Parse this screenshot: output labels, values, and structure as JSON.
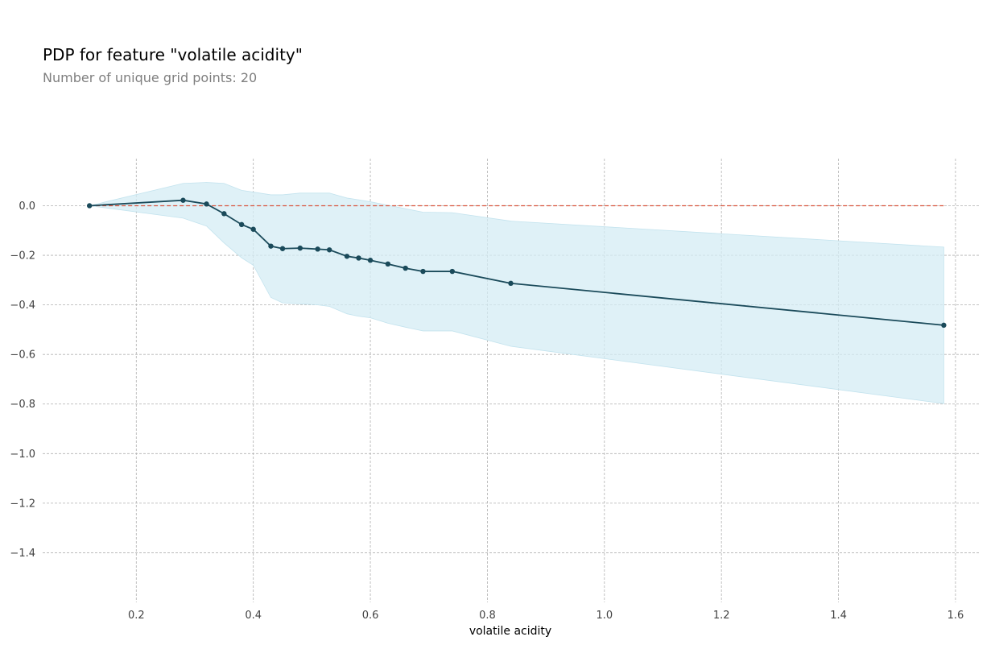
{
  "chart_data": {
    "type": "line",
    "title": "PDP for feature \"volatile acidity\"",
    "subtitle": "Number of unique grid points: 20",
    "xlabel": "volatile acidity",
    "ylabel": "",
    "xlim": [
      0.04,
      1.64
    ],
    "ylim": [
      -1.6,
      0.19
    ],
    "xticks": [
      0.2,
      0.4,
      0.6,
      0.8,
      1.0,
      1.2,
      1.4,
      1.6
    ],
    "xtick_labels": [
      "0.2",
      "0.4",
      "0.6",
      "0.8",
      "1.0",
      "1.2",
      "1.4",
      "1.6"
    ],
    "yticks": [
      0.0,
      -0.2,
      -0.4,
      -0.6,
      -0.8,
      -1.0,
      -1.2,
      -1.4
    ],
    "ytick_labels": [
      "0.0",
      "−0.2",
      "−0.4",
      "−0.6",
      "−0.8",
      "−1.0",
      "−1.2",
      "−1.4"
    ],
    "grid": true,
    "series": [
      {
        "name": "pdp",
        "color": "#1a4a5a",
        "x": [
          0.12,
          0.28,
          0.32,
          0.35,
          0.38,
          0.4,
          0.43,
          0.45,
          0.48,
          0.51,
          0.53,
          0.56,
          0.58,
          0.6,
          0.63,
          0.66,
          0.69,
          0.74,
          0.84,
          1.58
        ],
        "y": [
          0.0,
          0.022,
          0.007,
          -0.032,
          -0.076,
          -0.095,
          -0.163,
          -0.173,
          -0.171,
          -0.175,
          -0.178,
          -0.204,
          -0.211,
          -0.22,
          -0.235,
          -0.252,
          -0.265,
          -0.265,
          -0.313,
          -0.482
        ]
      }
    ],
    "confidence_band": {
      "color": "#d4ecf4",
      "x": [
        0.12,
        0.28,
        0.32,
        0.35,
        0.38,
        0.4,
        0.43,
        0.45,
        0.48,
        0.51,
        0.53,
        0.56,
        0.58,
        0.6,
        0.63,
        0.66,
        0.69,
        0.74,
        0.84,
        1.58
      ],
      "upper": [
        0.0,
        0.09,
        0.094,
        0.09,
        0.062,
        0.055,
        0.044,
        0.044,
        0.051,
        0.051,
        0.051,
        0.031,
        0.024,
        0.016,
        0.002,
        -0.012,
        -0.026,
        -0.028,
        -0.062,
        -0.167
      ],
      "lower": [
        0.0,
        -0.05,
        -0.082,
        -0.15,
        -0.21,
        -0.24,
        -0.37,
        -0.392,
        -0.396,
        -0.4,
        -0.406,
        -0.436,
        -0.446,
        -0.452,
        -0.474,
        -0.49,
        -0.505,
        -0.505,
        -0.567,
        -0.798
      ]
    },
    "reference_line": {
      "y": 0.0,
      "x_start": 0.12,
      "x_end": 1.58,
      "color": "#d9553e",
      "style": "dashed"
    }
  }
}
